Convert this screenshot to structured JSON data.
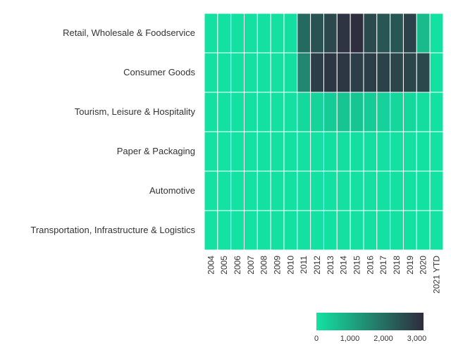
{
  "chart_data": {
    "type": "heatmap",
    "title": "",
    "xlabel": "",
    "ylabel": "",
    "rows": [
      "Retail, Wholesale & Foodservice",
      "Consumer Goods",
      "Tourism, Leisure & Hospitality",
      "Paper & Packaging",
      "Automotive",
      "Transportation, Infrastructure & Logistics"
    ],
    "columns": [
      "2004",
      "2005",
      "2006",
      "2007",
      "2008",
      "2009",
      "2010",
      "2011",
      "2012",
      "2013",
      "2014",
      "2015",
      "2016",
      "2017",
      "2018",
      "2019",
      "2020",
      "2021 YTD"
    ],
    "values": [
      [
        20,
        20,
        25,
        30,
        35,
        40,
        60,
        2100,
        2500,
        2700,
        3050,
        3150,
        2650,
        2450,
        2450,
        2800,
        700,
        20
      ],
      [
        20,
        20,
        25,
        30,
        35,
        40,
        60,
        1600,
        2850,
        3000,
        3000,
        2850,
        2850,
        2800,
        2750,
        2750,
        2700,
        20
      ],
      [
        10,
        10,
        10,
        15,
        20,
        25,
        40,
        150,
        250,
        380,
        500,
        500,
        380,
        300,
        200,
        160,
        90,
        10
      ],
      [
        5,
        5,
        5,
        5,
        10,
        10,
        15,
        25,
        35,
        45,
        50,
        50,
        45,
        40,
        35,
        30,
        20,
        5
      ],
      [
        5,
        5,
        5,
        5,
        10,
        10,
        10,
        20,
        25,
        30,
        35,
        35,
        30,
        25,
        20,
        20,
        15,
        5
      ],
      [
        5,
        5,
        5,
        5,
        10,
        10,
        10,
        15,
        20,
        25,
        30,
        30,
        25,
        20,
        20,
        15,
        10,
        5
      ]
    ],
    "colorscale": {
      "min": 0,
      "max": 3200,
      "low_color": "#13e2a2",
      "high_color": "#2f2b3d"
    },
    "colorbar": {
      "ticks": [
        0,
        1000,
        2000,
        3000
      ],
      "tick_labels": [
        "0",
        "1,000",
        "2,000",
        "3,000"
      ]
    },
    "grid": "white cell borders",
    "legend": "bottom-right colorbar"
  }
}
